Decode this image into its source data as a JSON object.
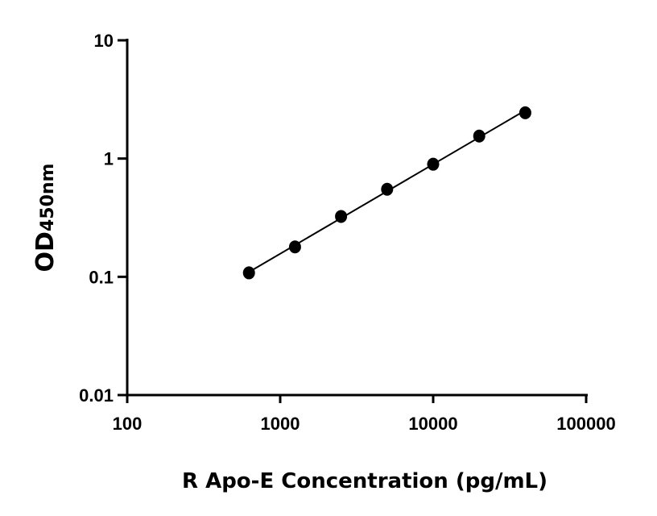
{
  "chart_data": {
    "type": "scatter",
    "title": "",
    "xlabel": "R Apo-E Concentration (pg/mL)",
    "ylabel_main": "OD",
    "ylabel_sub": "450nm",
    "x_scale": "log",
    "y_scale": "log",
    "xlim": [
      100,
      100000
    ],
    "ylim": [
      0.01,
      10
    ],
    "x_ticks": [
      "100",
      "1000",
      "10000",
      "100000"
    ],
    "y_ticks": [
      "0.01",
      "0.1",
      "1",
      "10"
    ],
    "grid": false,
    "x": [
      625,
      1250,
      2500,
      5000,
      10000,
      20000,
      40000
    ],
    "y": [
      0.108,
      0.179,
      0.324,
      0.55,
      0.896,
      1.55,
      2.44
    ],
    "fit_line": true,
    "marker_color": "#000000",
    "line_color": "#000000"
  }
}
